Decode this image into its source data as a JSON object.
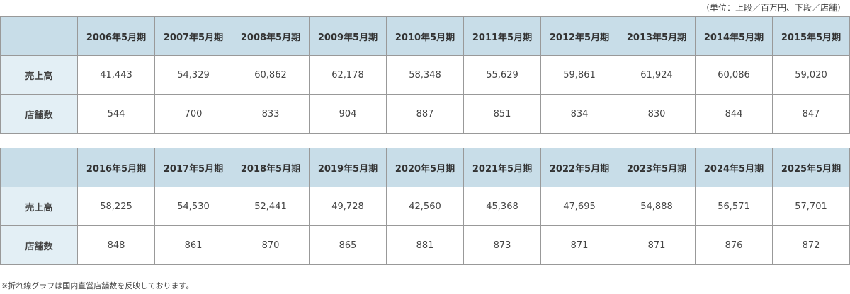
{
  "unit_note": "（単位：上段／百万円、下段／店舗）",
  "row_labels": {
    "sales": "売上高",
    "stores": "店舗数"
  },
  "tables": [
    {
      "periods": [
        "2006年5月期",
        "2007年5月期",
        "2008年5月期",
        "2009年5月期",
        "2010年5月期",
        "2011年5月期",
        "2012年5月期",
        "2013年5月期",
        "2014年5月期",
        "2015年5月期"
      ],
      "sales": [
        "41,443",
        "54,329",
        "60,862",
        "62,178",
        "58,348",
        "55,629",
        "59,861",
        "61,924",
        "60,086",
        "59,020"
      ],
      "stores": [
        "544",
        "700",
        "833",
        "904",
        "887",
        "851",
        "834",
        "830",
        "844",
        "847"
      ]
    },
    {
      "periods": [
        "2016年5月期",
        "2017年5月期",
        "2018年5月期",
        "2019年5月期",
        "2020年5月期",
        "2021年5月期",
        "2022年5月期",
        "2023年5月期",
        "2024年5月期",
        "2025年5月期"
      ],
      "sales": [
        "58,225",
        "54,530",
        "52,441",
        "49,728",
        "42,560",
        "45,368",
        "47,695",
        "54,888",
        "56,571",
        "57,701"
      ],
      "stores": [
        "848",
        "861",
        "870",
        "865",
        "881",
        "873",
        "871",
        "871",
        "876",
        "872"
      ]
    }
  ],
  "footnote": "※折れ線グラフは国内直営店舗数を反映しております。",
  "colors": {
    "header_bg": "#c8dde8",
    "label_bg": "#e3eff5",
    "border": "#999999"
  }
}
